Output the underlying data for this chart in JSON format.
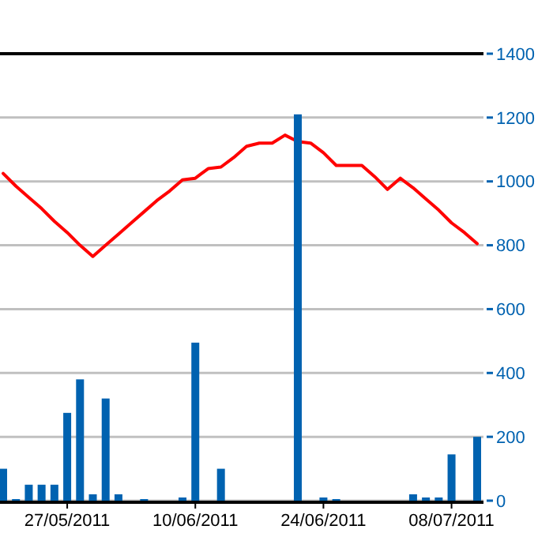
{
  "chart_data": {
    "type": "bar",
    "categories": [
      null,
      null,
      null,
      null,
      null,
      "27/05/2011",
      null,
      null,
      null,
      null,
      null,
      null,
      null,
      null,
      null,
      "10/06/2011",
      null,
      null,
      null,
      null,
      null,
      null,
      null,
      null,
      null,
      "24/06/2011",
      null,
      null,
      null,
      null,
      null,
      null,
      null,
      null,
      null,
      "08/07/2011",
      null,
      null
    ],
    "series": [
      {
        "type": "line",
        "color": "#ff0000",
        "values": [
          1025,
          985,
          950,
          915,
          875,
          840,
          800,
          765,
          800,
          835,
          870,
          905,
          940,
          970,
          1005,
          1010,
          1040,
          1045,
          1075,
          1110,
          1120,
          1120,
          1145,
          1125,
          1120,
          1090,
          1050,
          1050,
          1050,
          1015,
          975,
          1010,
          980,
          945,
          910,
          870,
          840,
          805
        ]
      },
      {
        "color": "#0062b0",
        "values": [
          100,
          5,
          50,
          50,
          50,
          275,
          380,
          20,
          320,
          20,
          0,
          5,
          0,
          0,
          10,
          495,
          0,
          100,
          0,
          0,
          0,
          0,
          0,
          1210,
          0,
          10,
          5,
          0,
          0,
          0,
          0,
          0,
          20,
          10,
          10,
          145,
          0,
          200
        ]
      }
    ],
    "ylim": [
      0,
      1400
    ],
    "yticks": [
      0,
      200,
      400,
      600,
      800,
      1000,
      1200,
      1400
    ],
    "grid": true
  }
}
